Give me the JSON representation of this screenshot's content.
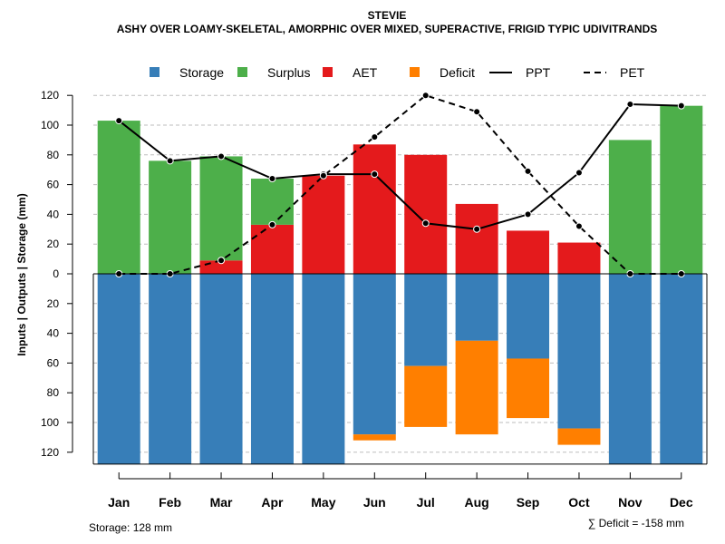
{
  "chart_data": {
    "type": "bar",
    "title": "STEVIE",
    "subtitle": "ASHY OVER LOAMY-SKELETAL, AMORPHIC OVER MIXED, SUPERACTIVE, FRIGID TYPIC UDIVITRANDS",
    "ylabel": "Inputs | Outputs | Storage    (mm)",
    "ylim": [
      -128,
      128
    ],
    "yticks": [
      120,
      100,
      80,
      60,
      40,
      20,
      0,
      20,
      40,
      60,
      80,
      100,
      120
    ],
    "ytick_values": [
      120,
      100,
      80,
      60,
      40,
      20,
      0,
      -20,
      -40,
      -60,
      -80,
      -100,
      -120
    ],
    "grid": true,
    "legend_position": "top",
    "categories": [
      "Jan",
      "Feb",
      "Mar",
      "Apr",
      "May",
      "Jun",
      "Jul",
      "Aug",
      "Sep",
      "Oct",
      "Nov",
      "Dec"
    ],
    "stacked_above_zero": [
      {
        "name": "AET",
        "values": [
          0,
          0,
          9,
          33,
          66,
          87,
          80,
          47,
          29,
          21,
          0,
          0
        ]
      },
      {
        "name": "Surplus",
        "values": [
          103,
          76,
          70,
          31,
          0,
          0,
          0,
          0,
          0,
          0,
          90,
          113
        ]
      }
    ],
    "stacked_below_zero": [
      {
        "name": "Storage",
        "values": [
          128,
          128,
          128,
          128,
          128,
          108,
          62,
          45,
          57,
          104,
          128,
          128
        ]
      },
      {
        "name": "Deficit",
        "values": [
          0,
          0,
          0,
          0,
          0,
          4,
          41,
          63,
          40,
          11,
          0,
          0
        ]
      }
    ],
    "lines": [
      {
        "name": "PPT",
        "style": "solid",
        "values": [
          103,
          76,
          79,
          64,
          67,
          67,
          34,
          30,
          40,
          68,
          114,
          113
        ]
      },
      {
        "name": "PET",
        "style": "dashed",
        "values": [
          0,
          0,
          9,
          33,
          66,
          92,
          120,
          109,
          69,
          32,
          0,
          0
        ]
      }
    ],
    "legend": [
      {
        "label": "Storage",
        "kind": "box",
        "color": "#377eb8"
      },
      {
        "label": "Surplus",
        "kind": "box",
        "color": "#4daf4a"
      },
      {
        "label": "AET",
        "kind": "box",
        "color": "#e41a1c"
      },
      {
        "label": "Deficit",
        "kind": "box",
        "color": "#ff7f00"
      },
      {
        "label": "PPT",
        "kind": "solid"
      },
      {
        "label": "PET",
        "kind": "dashed"
      }
    ],
    "colors": {
      "Storage": "#377eb8",
      "Surplus": "#4daf4a",
      "AET": "#e41a1c",
      "Deficit": "#ff7f00",
      "grid": "#bdbdbd"
    },
    "footer_left": "Storage: 128 mm",
    "footer_right": "∑ Deficit = -158 mm"
  }
}
